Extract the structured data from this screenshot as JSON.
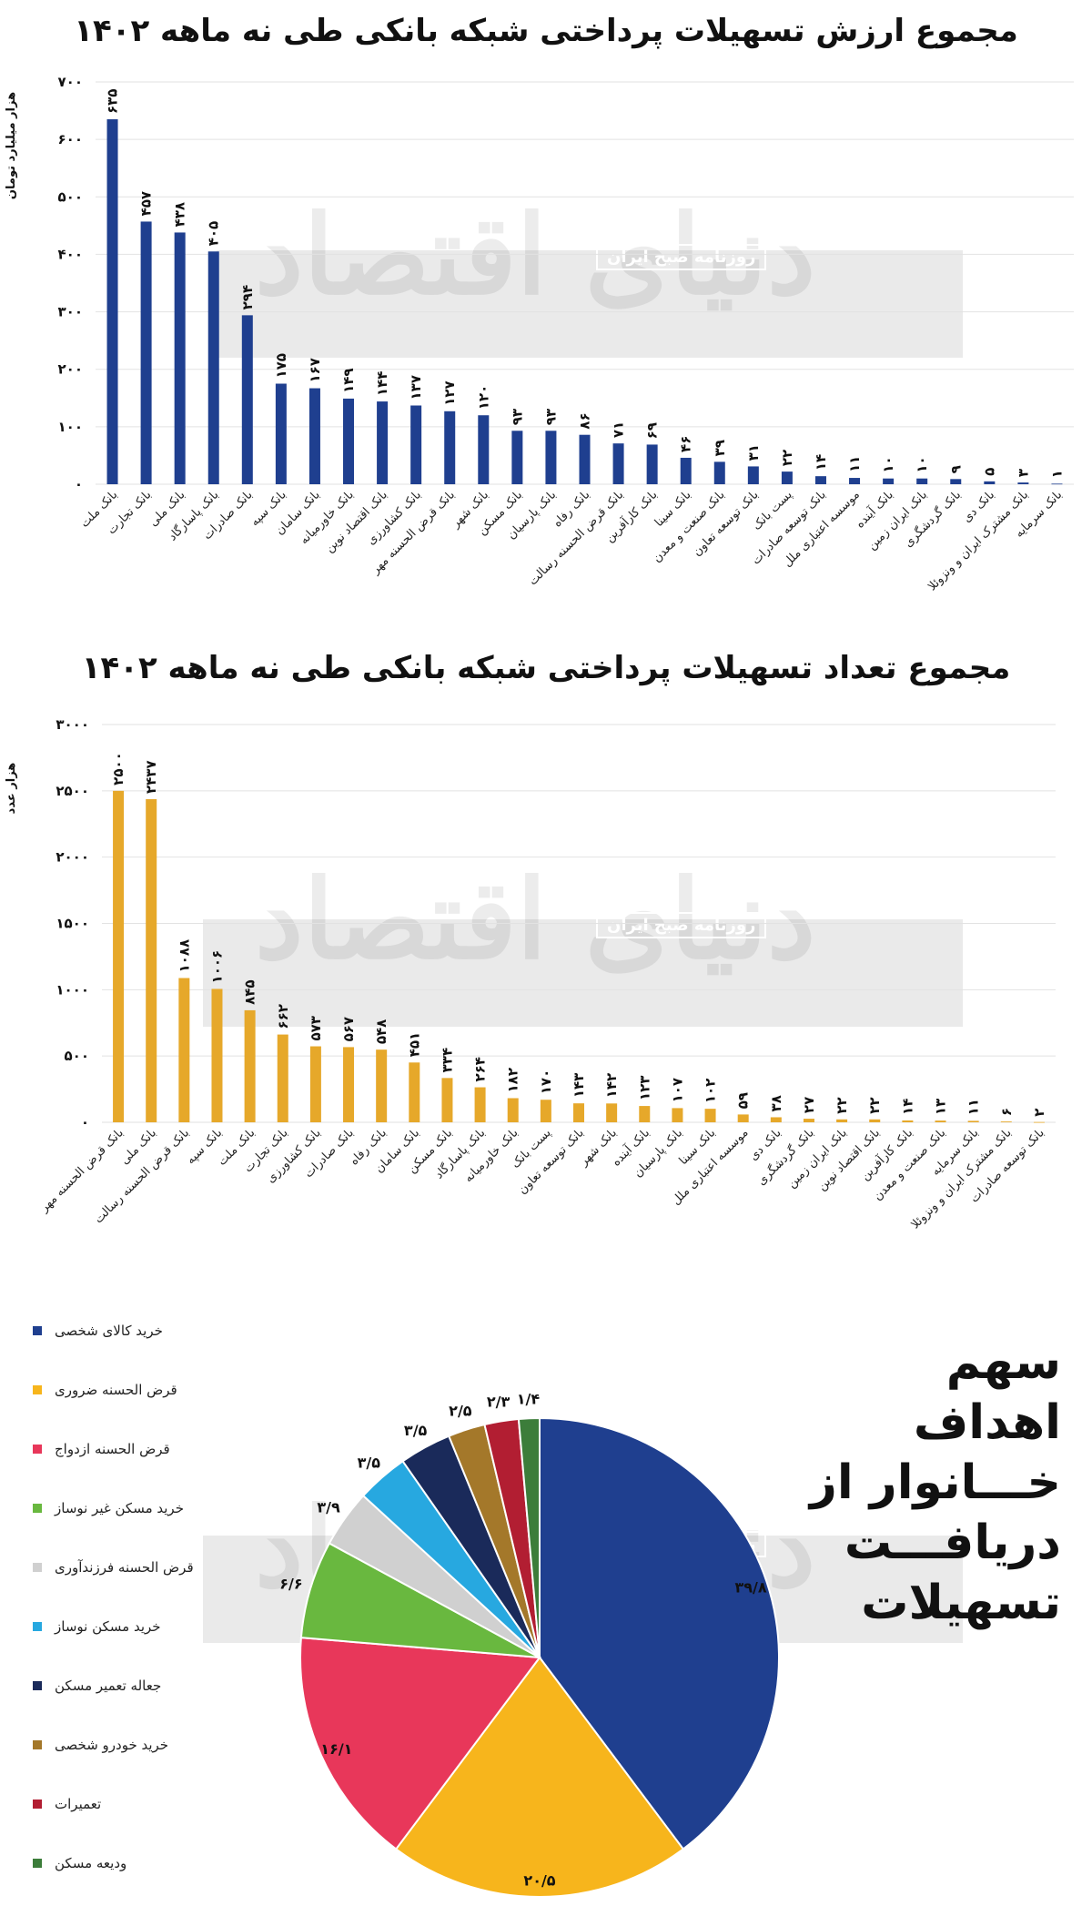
{
  "chart_value": {
    "title": "مجموع ارزش تسهیلات پرداختی شبکه بانکی طی نه ماهه ۱۴۰۲",
    "ylabel": "هزار میلیارد تومان",
    "bar_color": "#1f3f8f",
    "chart_data": {
      "type": "bar",
      "categories": [
        "بانک ملت",
        "بانک تجارت",
        "بانک ملی",
        "بانک پاسارگاد",
        "بانک صادرات",
        "بانک سپه",
        "بانک سامان",
        "بانک خاورمیانه",
        "بانک اقتصاد نوین",
        "بانک کشاورزی",
        "بانک قرض الحسنه مهر",
        "بانک شهر",
        "بانک مسکن",
        "بانک پارسیان",
        "بانک رفاه",
        "بانک قرض الحسنه رسالت",
        "بانک کارآفرین",
        "بانک سینا",
        "بانک صنعت و معدن",
        "بانک توسعه تعاون",
        "پست بانک",
        "بانک توسعه صادرات",
        "موسسه اعتباری ملل",
        "بانک آینده",
        "بانک ایران زمین",
        "بانک گردشگری",
        "بانک دی",
        "بانک مشترک ایران و ونزوئلا",
        "بانک سرمایه"
      ],
      "values": [
        635,
        457,
        438,
        405,
        294,
        175,
        167,
        149,
        144,
        137,
        127,
        120,
        93,
        93,
        86,
        71,
        69,
        46,
        39,
        31,
        22,
        14,
        11,
        10,
        10,
        9,
        5,
        3,
        1
      ],
      "value_labels": [
        "۶۳۵",
        "۴۵۷",
        "۴۳۸",
        "۴۰۵",
        "۲۹۴",
        "۱۷۵",
        "۱۶۷",
        "۱۴۹",
        "۱۴۴",
        "۱۳۷",
        "۱۲۷",
        "۱۲۰",
        "۹۳",
        "۹۳",
        "۸۶",
        "۷۱",
        "۶۹",
        "۴۶",
        "۳۹",
        "۳۱",
        "۲۲",
        "۱۴",
        "۱۱",
        "۱۰",
        "۱۰",
        "۹",
        "۵",
        "۳",
        "۱"
      ],
      "ylim": [
        0,
        700
      ],
      "yticks": [
        0,
        100,
        200,
        300,
        400,
        500,
        600,
        700
      ],
      "ytick_labels": [
        "۰",
        "۱۰۰",
        "۲۰۰",
        "۳۰۰",
        "۴۰۰",
        "۵۰۰",
        "۶۰۰",
        "۷۰۰"
      ],
      "grid": true
    }
  },
  "chart_count": {
    "title": "مجموع تعداد تسهیلات پرداختی شبکه بانکی طی نه ماهه ۱۴۰۲",
    "ylabel": "هزار عدد",
    "bar_color": "#e6a82a",
    "chart_data": {
      "type": "bar",
      "categories": [
        "بانک قرض الحسنه مهر",
        "بانک ملی",
        "بانک قرض الحسنه رسالت",
        "بانک سپه",
        "بانک ملت",
        "بانک تجارت",
        "بانک کشاورزی",
        "بانک صادرات",
        "بانک رفاه",
        "بانک سامان",
        "بانک مسکن",
        "بانک پاسارگاد",
        "بانک خاورمیانه",
        "پست بانک",
        "بانک توسعه تعاون",
        "بانک شهر",
        "بانک آینده",
        "بانک پارسیان",
        "بانک سینا",
        "موسسه اعتباری ملل",
        "بانک دی",
        "بانک گردشگری",
        "بانک ایران زمین",
        "بانک اقتصاد نوین",
        "بانک کارآفرین",
        "بانک صنعت و معدن",
        "بانک سرمایه",
        "بانک مشترک ایران و ونزوئلا",
        "بانک توسعه صادرات"
      ],
      "values": [
        2500,
        2437,
        1088,
        1006,
        845,
        662,
        573,
        567,
        548,
        451,
        334,
        264,
        182,
        170,
        143,
        142,
        123,
        107,
        102,
        59,
        38,
        27,
        22,
        22,
        14,
        13,
        11,
        6,
        2
      ],
      "value_labels": [
        "۲۵۰۰",
        "۲۴۳۷",
        "۱۰۸۸",
        "۱۰۰۶",
        "۸۴۵",
        "۶۶۲",
        "۵۷۳",
        "۵۶۷",
        "۵۴۸",
        "۴۵۱",
        "۳۳۴",
        "۲۶۴",
        "۱۸۲",
        "۱۷۰",
        "۱۴۳",
        "۱۴۲",
        "۱۲۳",
        "۱۰۷",
        "۱۰۲",
        "۵۹",
        "۳۸",
        "۲۷",
        "۲۲",
        "۲۲",
        "۱۴",
        "۱۳",
        "۱۱",
        "۶",
        "۲"
      ],
      "ylim": [
        0,
        3000
      ],
      "yticks": [
        0,
        500,
        1000,
        1500,
        2000,
        2500,
        3000
      ],
      "ytick_labels": [
        "۰",
        "۵۰۰",
        "۱۰۰۰",
        "۱۵۰۰",
        "۲۰۰۰",
        "۲۵۰۰",
        "۳۰۰۰"
      ],
      "grid": true
    }
  },
  "chart_pie": {
    "title_lines": [
      "سهم اهداف",
      "خـــانوار از",
      "دریافـــت",
      "تسهیلات"
    ],
    "chart_data": {
      "type": "pie",
      "labels": [
        "خرید کالای شخصی",
        "قرض الحسنه ضروری",
        "قرض الحسنه ازدواج",
        "خرید مسکن غیر نوساز",
        "قرض الحسنه فرزندآوری",
        "خرید مسکن نوساز",
        "جعاله تعمیر مسکن",
        "خرید خودرو شخصی",
        "تعمیرات",
        "ودیعه مسکن"
      ],
      "values": [
        39.8,
        20.5,
        16.1,
        6.6,
        3.9,
        3.5,
        3.5,
        2.5,
        2.3,
        1.4
      ],
      "value_labels": [
        "۳۹/۸",
        "۲۰/۵",
        "۱۶/۱",
        "۶/۶",
        "۳/۹",
        "۳/۵",
        "۳/۵",
        "۲/۵",
        "۲/۳",
        "۱/۴"
      ],
      "colors": [
        "#1f3f8f",
        "#f7b51c",
        "#e8375a",
        "#69b83f",
        "#d0d0d0",
        "#27a8e0",
        "#1a2a5a",
        "#a4782a",
        "#b21e32",
        "#3c7d3a"
      ],
      "legend_position": "left"
    }
  },
  "watermark": {
    "badge_text": "روزنامه صبح ایران",
    "logo_text": "دنیای اقتصاد"
  }
}
